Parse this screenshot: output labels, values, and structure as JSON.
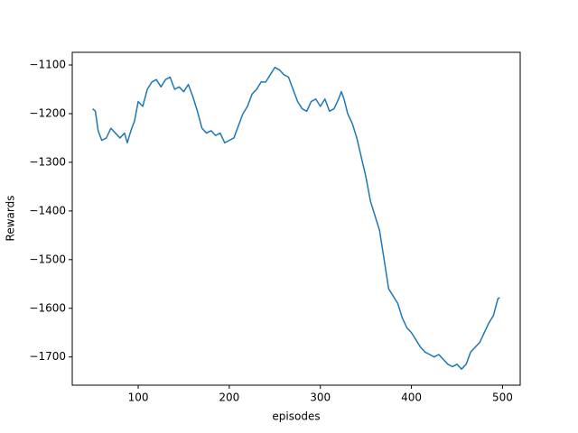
{
  "chart_data": {
    "type": "line",
    "xlabel": "episodes",
    "ylabel": "Rewards",
    "x": [
      50,
      53,
      56,
      60,
      65,
      70,
      75,
      80,
      85,
      88,
      92,
      96,
      100,
      105,
      110,
      115,
      120,
      125,
      130,
      135,
      140,
      145,
      150,
      155,
      160,
      165,
      170,
      175,
      180,
      185,
      190,
      195,
      200,
      205,
      210,
      215,
      220,
      225,
      230,
      235,
      240,
      245,
      250,
      255,
      260,
      265,
      270,
      275,
      280,
      285,
      290,
      295,
      300,
      305,
      310,
      315,
      320,
      323,
      326,
      330,
      335,
      340,
      345,
      350,
      355,
      360,
      365,
      370,
      375,
      380,
      385,
      390,
      395,
      400,
      405,
      410,
      415,
      420,
      425,
      430,
      435,
      440,
      445,
      450,
      455,
      460,
      465,
      470,
      475,
      480,
      485,
      490,
      495,
      497
    ],
    "series": [
      {
        "name": "rewards",
        "color": "#1f77b4",
        "values": [
          -1190,
          -1195,
          -1235,
          -1255,
          -1250,
          -1230,
          -1240,
          -1250,
          -1240,
          -1260,
          -1235,
          -1215,
          -1175,
          -1185,
          -1150,
          -1135,
          -1130,
          -1145,
          -1130,
          -1125,
          -1150,
          -1145,
          -1155,
          -1140,
          -1165,
          -1195,
          -1230,
          -1240,
          -1235,
          -1245,
          -1240,
          -1260,
          -1255,
          -1250,
          -1225,
          -1200,
          -1185,
          -1160,
          -1150,
          -1135,
          -1135,
          -1120,
          -1105,
          -1110,
          -1120,
          -1125,
          -1150,
          -1175,
          -1190,
          -1195,
          -1175,
          -1170,
          -1185,
          -1170,
          -1195,
          -1190,
          -1170,
          -1155,
          -1170,
          -1200,
          -1220,
          -1250,
          -1290,
          -1330,
          -1380,
          -1410,
          -1440,
          -1500,
          -1560,
          -1575,
          -1590,
          -1620,
          -1640,
          -1650,
          -1665,
          -1680,
          -1690,
          -1695,
          -1700,
          -1695,
          -1705,
          -1715,
          -1720,
          -1715,
          -1725,
          -1715,
          -1690,
          -1680,
          -1670,
          -1650,
          -1630,
          -1615,
          -1580,
          -1578
        ]
      }
    ],
    "xlim": [
      27.6,
      519.4
    ],
    "ylim": [
      -1758,
      -1074
    ],
    "xticks": [
      100,
      200,
      300,
      400,
      500
    ],
    "yticks": [
      {
        "value": -1700,
        "label": "−1700"
      },
      {
        "value": -1600,
        "label": "−1600"
      },
      {
        "value": -1500,
        "label": "−1500"
      },
      {
        "value": -1400,
        "label": "−1400"
      },
      {
        "value": -1300,
        "label": "−1300"
      },
      {
        "value": -1200,
        "label": "−1200"
      },
      {
        "value": -1100,
        "label": "−1100"
      }
    ],
    "grid": false
  }
}
